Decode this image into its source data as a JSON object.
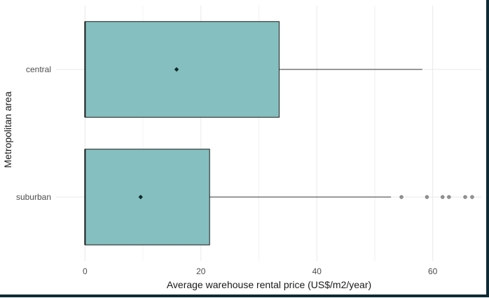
{
  "chart_data": {
    "type": "boxplot",
    "orientation": "horizontal",
    "xlabel": "Average warehouse rental price (US$/m2/year)",
    "ylabel": "Metropolitan area",
    "xlim": [
      -5,
      68.5
    ],
    "x_ticks": [
      0,
      20,
      40,
      60
    ],
    "grid": true,
    "colors": {
      "box_fill": "#85bfbf",
      "box_stroke": "#1a1a1a",
      "grid": "#e8e8e8",
      "whisker": "#333333",
      "outlier": "#808080",
      "mean": "#0d2b2b",
      "tick_text": "#4d4d4d",
      "axis_title": "#1a1a1a"
    },
    "groups": [
      {
        "category": "central",
        "min": 0,
        "q1": 0,
        "median": 0,
        "q3": 33.5,
        "max": 58.2,
        "mean": 15.8,
        "outliers": []
      },
      {
        "category": "suburban",
        "min": 0,
        "q1": 0,
        "median": 0,
        "q3": 21.5,
        "max": 52.8,
        "mean": 9.6,
        "outliers": [
          54.6,
          59.0,
          61.7,
          62.8,
          65.6,
          66.8
        ]
      }
    ]
  }
}
